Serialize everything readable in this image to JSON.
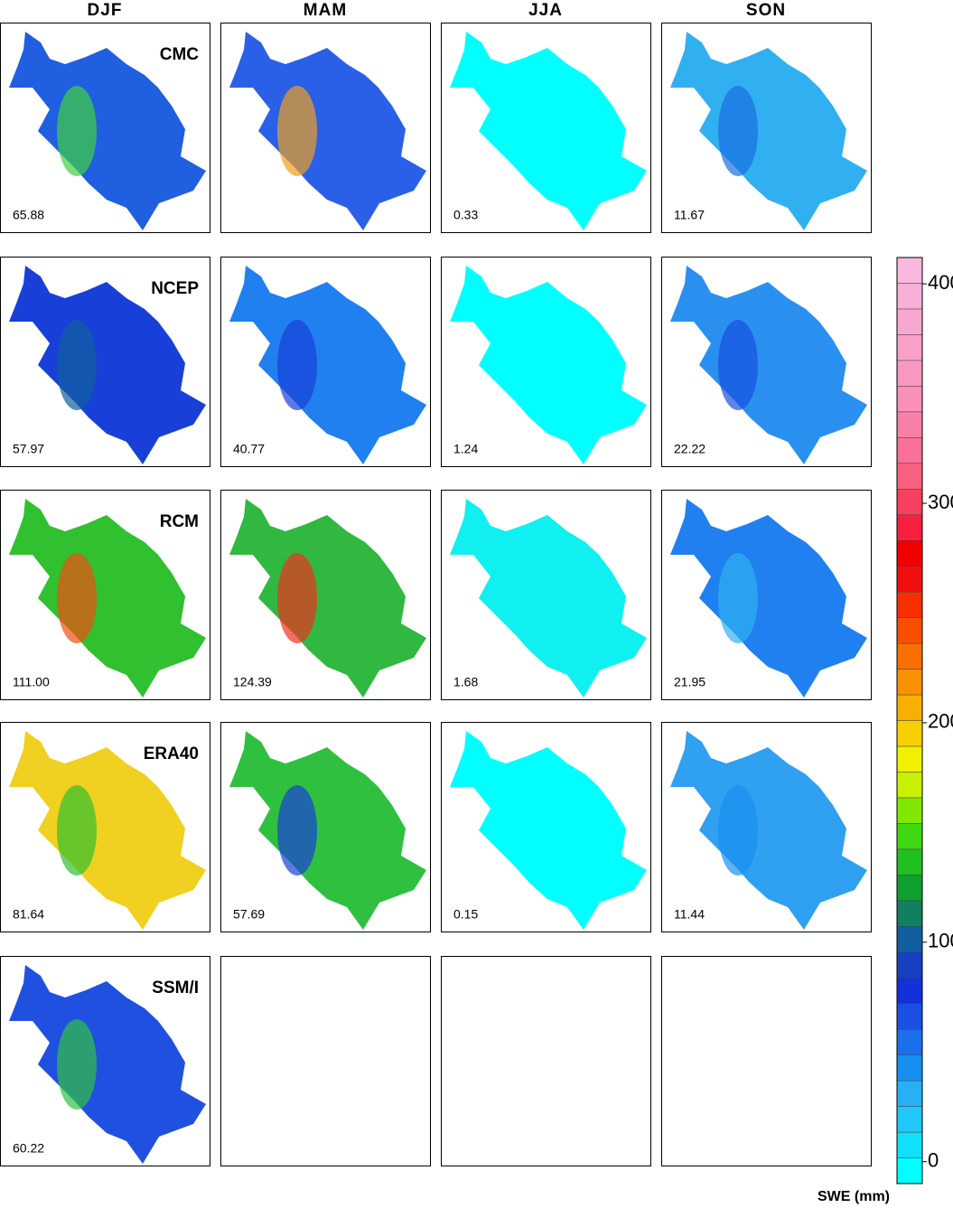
{
  "columns": [
    "DJF",
    "MAM",
    "JJA",
    "SON"
  ],
  "rows": [
    {
      "name": "CMC",
      "values": [
        "65.88",
        "",
        "0.33",
        "11.67"
      ]
    },
    {
      "name": "NCEP",
      "values": [
        "57.97",
        "40.77",
        "1.24",
        "22.22"
      ]
    },
    {
      "name": "RCM",
      "values": [
        "111.00",
        "124.39",
        "1.68",
        "21.95"
      ]
    },
    {
      "name": "ERA40",
      "values": [
        "81.64",
        "57.69",
        "0.15",
        "11.44"
      ]
    },
    {
      "name": "SSM/I",
      "values": [
        "60.22",
        null,
        null,
        null
      ]
    }
  ],
  "colorbar": {
    "label": "SWE (mm)",
    "range": [
      -10,
      412
    ],
    "ticks": [
      0,
      100,
      200,
      300,
      400
    ],
    "colors": [
      "#00ffff",
      "#10e0fa",
      "#20c8f8",
      "#28b0f4",
      "#1890f0",
      "#1a70ea",
      "#1a50e4",
      "#1430d8",
      "#1840c0",
      "#1060a0",
      "#108060",
      "#10a030",
      "#20c020",
      "#40d810",
      "#80e800",
      "#c8f000",
      "#f0f000",
      "#f8d000",
      "#f8b000",
      "#f89000",
      "#f87000",
      "#f85000",
      "#f83000",
      "#f01010",
      "#f00000",
      "#f82040",
      "#f84060",
      "#f86080",
      "#f87098",
      "#f880a8",
      "#f890b8",
      "#f898c0",
      "#f8a0c8",
      "#f8a8d0",
      "#f8b0d8",
      "#f8b8e0"
    ]
  }
}
